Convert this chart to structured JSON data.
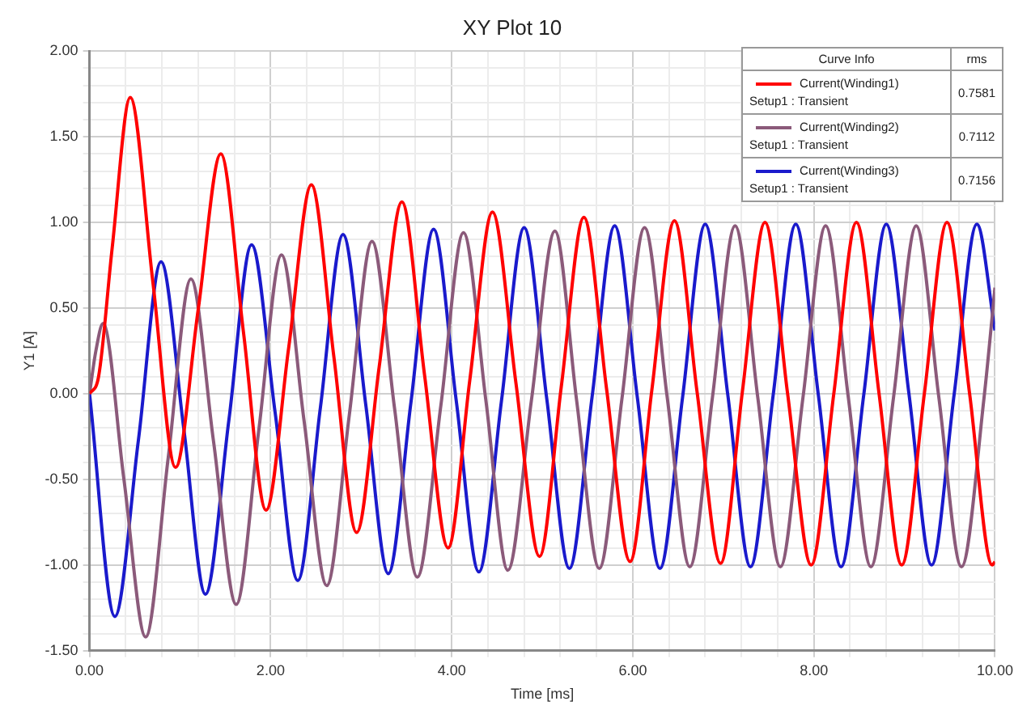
{
  "chart_data": {
    "type": "line",
    "title": "XY Plot 10",
    "xlabel": "Time [ms]",
    "ylabel": "Y1 [A]",
    "legend_title": "Curve Info",
    "legend": "top right",
    "grid": true,
    "marker": "none",
    "line_style": "solid",
    "annotations": [
      "rms",
      "0.7581",
      "0.7112",
      "0.7156"
    ],
    "xlim": [
      0,
      10
    ],
    "ylim": [
      -1.5,
      2
    ],
    "xticks": [
      {
        "value": 0,
        "label": "0.00"
      },
      {
        "value": 0.4,
        "label": null
      },
      {
        "value": 0.8,
        "label": null
      },
      {
        "value": 1.2,
        "label": null
      },
      {
        "value": 1.6,
        "label": null
      },
      {
        "value": 2,
        "label": "2.00"
      },
      {
        "value": 2.4,
        "label": null
      },
      {
        "value": 2.8,
        "label": null
      },
      {
        "value": 3.2,
        "label": null
      },
      {
        "value": 3.6,
        "label": null
      },
      {
        "value": 4,
        "label": "4.00"
      },
      {
        "value": 4.4,
        "label": null
      },
      {
        "value": 4.8,
        "label": null
      },
      {
        "value": 5.2,
        "label": null
      },
      {
        "value": 5.6,
        "label": null
      },
      {
        "value": 6,
        "label": "6.00"
      },
      {
        "value": 6.4,
        "label": null
      },
      {
        "value": 6.8,
        "label": null
      },
      {
        "value": 7.2,
        "label": null
      },
      {
        "value": 7.6,
        "label": null
      },
      {
        "value": 8,
        "label": "8.00"
      },
      {
        "value": 8.4,
        "label": null
      },
      {
        "value": 8.8,
        "label": null
      },
      {
        "value": 9.2,
        "label": null
      },
      {
        "value": 9.6,
        "label": null
      },
      {
        "value": 10,
        "label": "10.00"
      }
    ],
    "yticks": [
      {
        "value": -1.5,
        "label": "-1.50"
      },
      {
        "value": -1.4,
        "label": null
      },
      {
        "value": -1.3,
        "label": null
      },
      {
        "value": -1.2,
        "label": null
      },
      {
        "value": -1.1,
        "label": null
      },
      {
        "value": -1,
        "label": "-1.00"
      },
      {
        "value": -0.9,
        "label": null
      },
      {
        "value": -0.8,
        "label": null
      },
      {
        "value": -0.7,
        "label": null
      },
      {
        "value": -0.6,
        "label": null
      },
      {
        "value": -0.5,
        "label": "-0.50"
      },
      {
        "value": -0.4,
        "label": null
      },
      {
        "value": -0.3,
        "label": null
      },
      {
        "value": -0.2,
        "label": null
      },
      {
        "value": -0.1,
        "label": null
      },
      {
        "value": 0,
        "label": "0.00"
      },
      {
        "value": 0.1,
        "label": null
      },
      {
        "value": 0.2,
        "label": null
      },
      {
        "value": 0.3,
        "label": null
      },
      {
        "value": 0.4,
        "label": null
      },
      {
        "value": 0.5,
        "label": "0.50"
      },
      {
        "value": 0.6,
        "label": null
      },
      {
        "value": 0.7,
        "label": null
      },
      {
        "value": 0.8,
        "label": null
      },
      {
        "value": 0.9,
        "label": null
      },
      {
        "value": 1,
        "label": "1.00"
      },
      {
        "value": 1.1,
        "label": null
      },
      {
        "value": 1.2,
        "label": null
      },
      {
        "value": 1.3,
        "label": null
      },
      {
        "value": 1.4,
        "label": null
      },
      {
        "value": 1.5,
        "label": "1.50"
      },
      {
        "value": 1.6,
        "label": null
      },
      {
        "value": 1.7,
        "label": null
      },
      {
        "value": 1.8,
        "label": null
      },
      {
        "value": 1.9,
        "label": null
      },
      {
        "value": 2,
        "label": "2.00"
      }
    ],
    "series": [
      {
        "name": "Current(Winding1)\nSetup1 : Transient",
        "color": "#ff0000",
        "x": [
          0,
          0.1,
          0.25,
          0.45,
          0.7,
          0.95,
          1.2,
          1.45,
          1.7,
          1.95,
          2.2,
          2.45,
          2.7,
          2.95,
          3.2,
          3.45,
          3.7,
          3.96,
          4.2,
          4.45,
          4.71,
          4.97,
          5.21,
          5.46,
          5.71,
          5.97,
          6.21,
          6.46,
          6.71,
          6.97,
          7.21,
          7.46,
          7.71,
          7.97,
          8.22,
          8.47,
          8.72,
          8.97,
          9.22,
          9.47,
          9.72,
          9.97,
          10
        ],
        "values": [
          0,
          0.1,
          0.85,
          1.73,
          0.65,
          -0.43,
          0.49,
          1.4,
          0.36,
          -0.68,
          0.27,
          1.22,
          0.21,
          -0.81,
          0.16,
          1.12,
          0.11,
          -0.9,
          0.08,
          1.06,
          0.06,
          -0.95,
          0.04,
          1.03,
          0.03,
          -0.98,
          0.02,
          1.01,
          0.01,
          -0.99,
          0.01,
          1,
          0,
          -1,
          0,
          1,
          0,
          -1,
          0,
          1,
          0,
          -1,
          -0.98
        ]
      },
      {
        "name": "Current(Winding2)\nSetup1 : Transient",
        "color": "#8b5a7a",
        "x": [
          0,
          0.07,
          0.15,
          0.38,
          0.62,
          0.87,
          1.12,
          1.37,
          1.62,
          1.87,
          2.12,
          2.37,
          2.62,
          2.87,
          3.12,
          3.37,
          3.62,
          3.88,
          4.13,
          4.38,
          4.62,
          4.88,
          5.14,
          5.38,
          5.63,
          5.88,
          6.13,
          6.38,
          6.63,
          6.88,
          7.13,
          7.38,
          7.63,
          7.88,
          8.13,
          8.38,
          8.63,
          8.88,
          9.13,
          9.38,
          9.63,
          9.88,
          10
        ],
        "values": [
          0,
          0.25,
          0.41,
          -0.5,
          -1.42,
          -0.37,
          0.67,
          -0.28,
          -1.23,
          -0.21,
          0.81,
          -0.16,
          -1.12,
          -0.12,
          0.89,
          -0.09,
          -1.07,
          -0.07,
          0.94,
          -0.05,
          -1.03,
          -0.04,
          0.95,
          -0.04,
          -1.02,
          -0.03,
          0.97,
          -0.02,
          -1.01,
          -0.02,
          0.98,
          -0.02,
          -1.01,
          -0.02,
          0.98,
          -0.02,
          -1.01,
          -0.02,
          0.98,
          -0.02,
          -1.01,
          -0.02,
          0.62
        ]
      },
      {
        "name": "Current(Winding3)\nSetup1 : Transient",
        "color": "#1a1acc",
        "x": [
          0,
          0.28,
          0.54,
          0.79,
          1.04,
          1.28,
          1.54,
          1.79,
          2.05,
          2.3,
          2.55,
          2.8,
          3.05,
          3.3,
          3.55,
          3.8,
          4.05,
          4.3,
          4.55,
          4.8,
          5.05,
          5.3,
          5.55,
          5.8,
          6.05,
          6.3,
          6.55,
          6.8,
          7.05,
          7.3,
          7.55,
          7.8,
          8.05,
          8.3,
          8.55,
          8.8,
          9.05,
          9.3,
          9.55,
          9.8,
          10
        ],
        "values": [
          0,
          -1.3,
          -0.27,
          0.77,
          -0.2,
          -1.17,
          -0.15,
          0.87,
          -0.11,
          -1.09,
          -0.08,
          0.93,
          -0.06,
          -1.05,
          -0.05,
          0.96,
          -0.04,
          -1.04,
          -0.04,
          0.97,
          -0.03,
          -1.02,
          -0.02,
          0.98,
          -0.02,
          -1.02,
          -0.02,
          0.99,
          -0.01,
          -1.01,
          -0.01,
          0.99,
          -0.01,
          -1.01,
          -0.01,
          0.99,
          0,
          -1,
          0,
          0.99,
          0.37
        ]
      }
    ]
  }
}
